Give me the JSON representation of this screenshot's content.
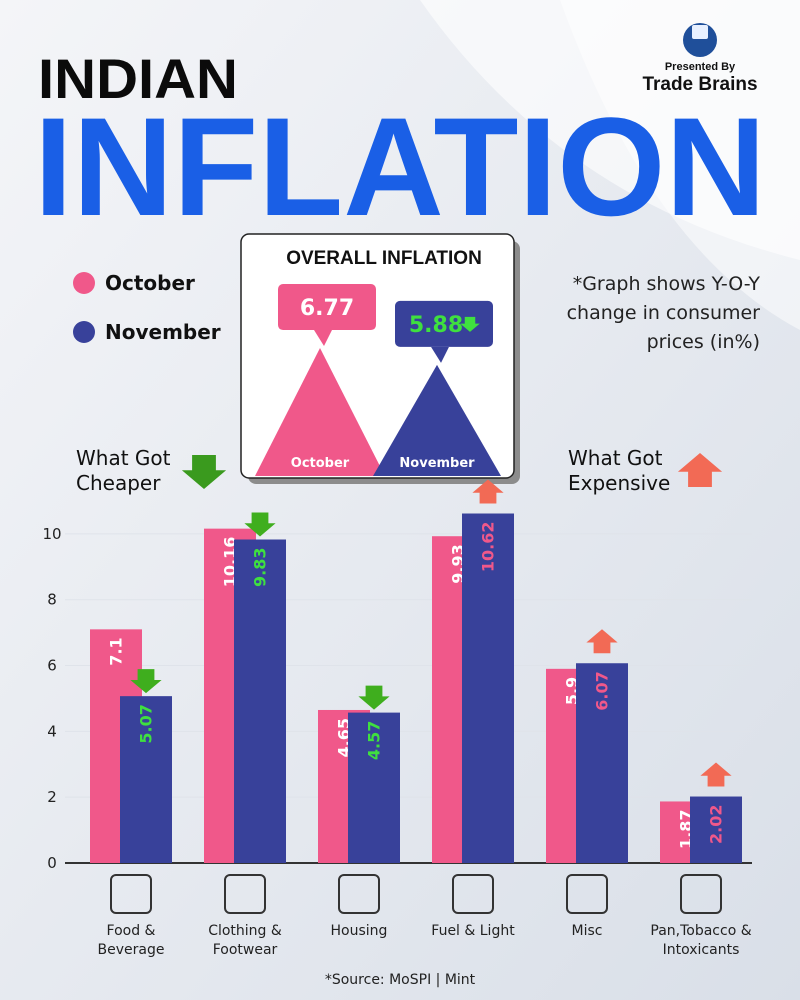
{
  "header": {
    "title_line1": "INDIAN",
    "title_line2": "INFLATION",
    "presented_by": "Presented By",
    "brand": "Trade Brains"
  },
  "note": "*Graph shows Y-O-Y change in consumer prices (in%)",
  "cheaper_label": "What Got Cheaper",
  "expensive_label": "What Got Expensive",
  "overall": {
    "title": "OVERALL INFLATION",
    "values": [
      6.77,
      5.88
    ]
  },
  "chart_data": {
    "type": "bar",
    "categories": [
      "Food & Beverage",
      "Clothing & Footwear",
      "Housing",
      "Fuel & Light",
      "Misc",
      "Pan,Tobacco & Intoxicants"
    ],
    "series": [
      {
        "name": "October",
        "color": "#f0588a",
        "values": [
          7.1,
          10.16,
          4.65,
          9.93,
          5.9,
          1.87
        ]
      },
      {
        "name": "November",
        "color": "#38419a",
        "values": [
          5.07,
          9.83,
          4.57,
          10.62,
          6.07,
          2.02
        ]
      }
    ],
    "change": [
      "down",
      "down",
      "down",
      "up",
      "up",
      "up"
    ],
    "ylim": [
      0,
      11
    ],
    "yticks": [
      0,
      2,
      4,
      6,
      8,
      10
    ],
    "grid": true
  },
  "source": "*Source: MoSPI | Mint"
}
